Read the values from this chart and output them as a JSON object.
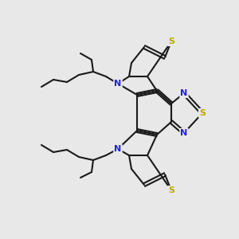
{
  "bg_color": "#e8e8e8",
  "bond_color": "#1a1a1a",
  "N_color": "#2222dd",
  "S_color": "#bbaa00",
  "lw": 1.5,
  "dbl_sep": 2.2,
  "figsize": [
    3.0,
    3.0
  ],
  "dpi": 100,
  "xlim": [
    0,
    300
  ],
  "ylim": [
    0,
    300
  ]
}
